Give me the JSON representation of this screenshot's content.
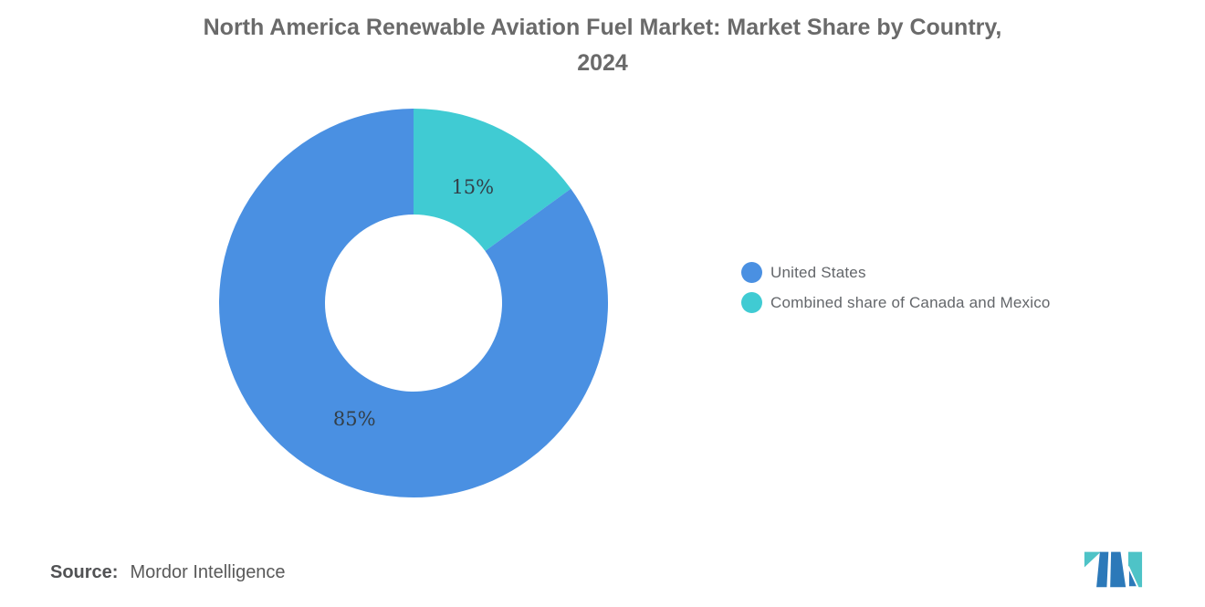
{
  "title": {
    "line1": "North America Renewable Aviation Fuel Market: Market Share by Country,",
    "line2": "2024",
    "color": "#6A6A6A"
  },
  "chart_data": {
    "type": "pie",
    "subtype": "donut",
    "title": "North America Renewable Aviation Fuel Market: Market Share by Country, 2024",
    "unit": "%",
    "start_angle_deg": -90,
    "direction": "clockwise",
    "outer_radius": 213,
    "inner_radius": 97,
    "label_radius_factor": 0.67,
    "label_color": "#333F48",
    "slices": [
      {
        "label": "Combined share of Canada and Mexico",
        "value": 15,
        "pct_label": "15%",
        "color": "#40CBD3"
      },
      {
        "label": "United States",
        "value": 85,
        "pct_label": "85%",
        "color": "#4A90E2"
      }
    ],
    "legend_order": [
      1,
      0
    ],
    "legend_position": "right"
  },
  "source": {
    "prefix": "Source:",
    "text": "Mordor Intelligence"
  },
  "logo": {
    "name": "mordor-intelligence-logo",
    "teal": "#4EC3C7",
    "blue": "#2C79B9"
  }
}
